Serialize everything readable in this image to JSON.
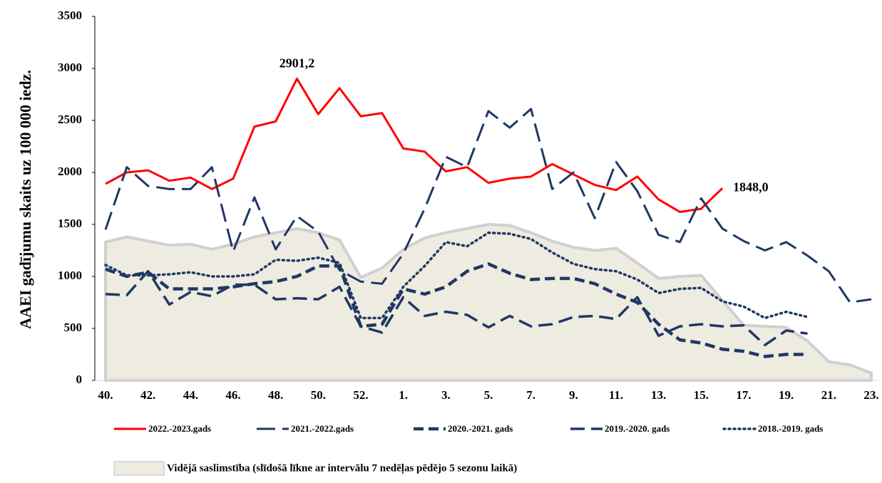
{
  "chart_data": {
    "type": "line",
    "y_label": "AAEI gadījumu skaits uz 100 000 iedz.",
    "categories": [
      "40.",
      null,
      "42.",
      null,
      "44.",
      null,
      "46.",
      null,
      "48.",
      null,
      "50.",
      null,
      "52.",
      null,
      "1.",
      null,
      "3.",
      null,
      "5.",
      null,
      "7.",
      null,
      "9.",
      null,
      "11.",
      null,
      "13.",
      null,
      "15.",
      null,
      "17.",
      null,
      "19.",
      null,
      "21.",
      null,
      "23."
    ],
    "ylim": [
      0,
      3500
    ],
    "yticks": [
      0,
      500,
      1000,
      1500,
      2000,
      2500,
      3000,
      3500
    ],
    "series": [
      {
        "name": "2022.-2023.gads",
        "type": "line",
        "dash": "solid",
        "color": "#ff0000",
        "values": [
          1890,
          2000,
          2020,
          1920,
          1950,
          1840,
          1940,
          2440,
          2490,
          2901.2,
          2560,
          2810,
          2540,
          2570,
          2230,
          2200,
          2010,
          2050,
          1900,
          1940,
          1960,
          2080,
          1980,
          1880,
          1830,
          1960,
          1740,
          1620,
          1650,
          1848.0,
          null,
          null,
          null,
          null,
          null,
          null,
          null
        ],
        "value_labels": [
          null,
          null,
          null,
          null,
          null,
          null,
          null,
          null,
          null,
          "2901,2",
          null,
          null,
          null,
          null,
          null,
          null,
          null,
          null,
          null,
          null,
          null,
          null,
          null,
          null,
          null,
          null,
          null,
          null,
          null,
          "1848,0",
          null,
          null,
          null,
          null,
          null,
          null,
          null
        ]
      },
      {
        "name": "2021.-2022.gads",
        "type": "line",
        "dash": "longdash",
        "color": "#1f3864",
        "values": [
          1450,
          2050,
          1870,
          1840,
          1840,
          2050,
          1240,
          1760,
          1260,
          1580,
          1430,
          1060,
          950,
          930,
          1220,
          1650,
          2150,
          2050,
          2590,
          2430,
          2610,
          1840,
          2000,
          1560,
          2100,
          1820,
          1400,
          1330,
          1750,
          1460,
          1340,
          1250,
          1330,
          1200,
          1050,
          750,
          780
        ]
      },
      {
        "name": "2020.-2021. gads",
        "type": "line",
        "dash": "dash",
        "color": "#1f3864",
        "values": [
          1070,
          1000,
          1040,
          880,
          880,
          880,
          900,
          930,
          950,
          1000,
          1100,
          1100,
          520,
          540,
          880,
          830,
          900,
          1050,
          1120,
          1030,
          970,
          980,
          980,
          930,
          830,
          750,
          540,
          390,
          360,
          300,
          280,
          230,
          250,
          250,
          null,
          null,
          null
        ]
      },
      {
        "name": "2019.-2020. gads",
        "type": "line",
        "dash": "longdash2",
        "color": "#1f3864",
        "values": [
          830,
          820,
          1050,
          730,
          850,
          810,
          920,
          920,
          780,
          790,
          780,
          900,
          520,
          460,
          800,
          620,
          660,
          630,
          510,
          620,
          520,
          540,
          610,
          620,
          590,
          800,
          430,
          520,
          540,
          520,
          530,
          340,
          480,
          450,
          null,
          null,
          null
        ]
      },
      {
        "name": "2018.-2019. gads",
        "type": "line",
        "dash": "dot",
        "color": "#1f3864",
        "values": [
          1110,
          1010,
          1010,
          1020,
          1040,
          1000,
          1000,
          1020,
          1160,
          1150,
          1180,
          1130,
          600,
          600,
          900,
          1100,
          1330,
          1290,
          1420,
          1410,
          1360,
          1230,
          1120,
          1070,
          1050,
          970,
          840,
          880,
          890,
          760,
          710,
          600,
          660,
          610,
          null,
          null,
          null
        ]
      },
      {
        "name": "Vidējā saslimstība (slīdošā līkne ar intervālu 7 nedēļas pēdējo 5 sezonu laikā)",
        "type": "area",
        "color": "#eeebe1",
        "edge_color": "#d0d0d0",
        "values": [
          1330,
          1380,
          1340,
          1300,
          1310,
          1260,
          1310,
          1380,
          1420,
          1460,
          1420,
          1350,
          990,
          1080,
          1260,
          1370,
          1420,
          1460,
          1500,
          1490,
          1420,
          1340,
          1280,
          1250,
          1270,
          1130,
          980,
          1000,
          1010,
          770,
          530,
          520,
          510,
          380,
          180,
          150,
          70
        ]
      }
    ]
  }
}
